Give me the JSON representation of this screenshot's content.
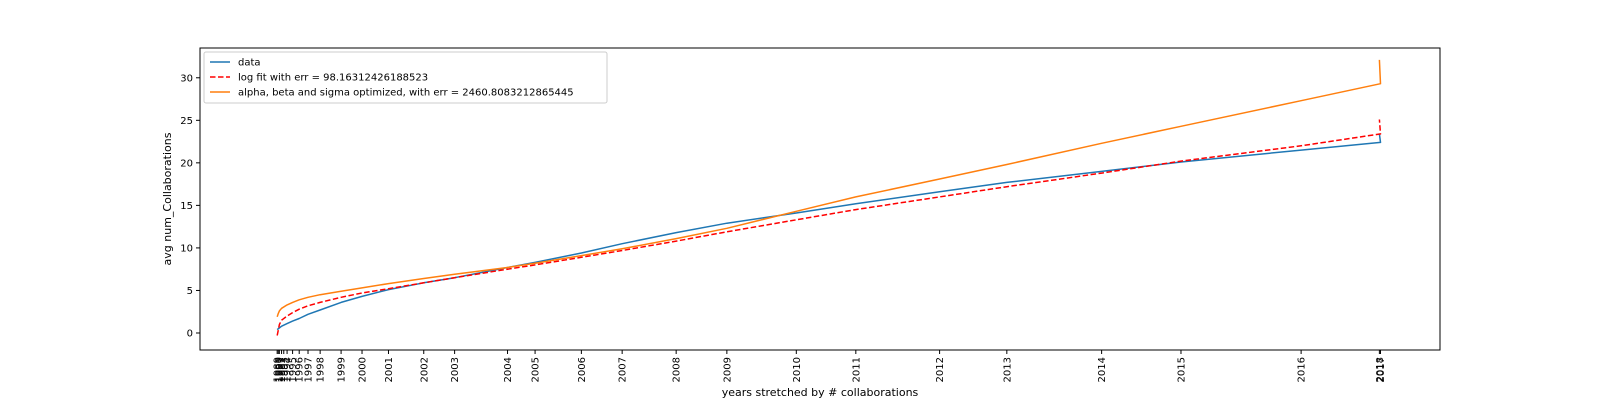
{
  "chart_data": {
    "type": "line",
    "xlabel": "years stretched by # collaborations",
    "ylabel": "avg num_Collaborations",
    "ylim": [
      -2,
      33.5
    ],
    "yticks": [
      0,
      5,
      10,
      15,
      20,
      25,
      30
    ],
    "xlim": [
      -0.07,
      1.055
    ],
    "grid": false,
    "legend_position": "top-left",
    "year_ticks": [
      {
        "label": "1989",
        "x": 0.0
      },
      {
        "label": "1990",
        "x": 0.001
      },
      {
        "label": "1991",
        "x": 0.002
      },
      {
        "label": "1992",
        "x": 0.004
      },
      {
        "label": "1993",
        "x": 0.006
      },
      {
        "label": "1994",
        "x": 0.009
      },
      {
        "label": "1995",
        "x": 0.014
      },
      {
        "label": "1996",
        "x": 0.02
      },
      {
        "label": "1997",
        "x": 0.028
      },
      {
        "label": "1998",
        "x": 0.039
      },
      {
        "label": "1999",
        "x": 0.058
      },
      {
        "label": "2000",
        "x": 0.077
      },
      {
        "label": "2001",
        "x": 0.101
      },
      {
        "label": "2002",
        "x": 0.133
      },
      {
        "label": "2003",
        "x": 0.161
      },
      {
        "label": "2004",
        "x": 0.209
      },
      {
        "label": "2005",
        "x": 0.234
      },
      {
        "label": "2006",
        "x": 0.276
      },
      {
        "label": "2007",
        "x": 0.313
      },
      {
        "label": "2008",
        "x": 0.362
      },
      {
        "label": "2009",
        "x": 0.408
      },
      {
        "label": "2010",
        "x": 0.471
      },
      {
        "label": "2011",
        "x": 0.525
      },
      {
        "label": "2012",
        "x": 0.601
      },
      {
        "label": "2013",
        "x": 0.662
      },
      {
        "label": "2014",
        "x": 0.748
      },
      {
        "label": "2015",
        "x": 0.82
      },
      {
        "label": "2016",
        "x": 0.929
      },
      {
        "label": "2017",
        "x": 1.001
      },
      {
        "label": "2018",
        "x": 1.0
      }
    ],
    "series": [
      {
        "name": "data",
        "color": "#1f77b4",
        "dash": "solid",
        "x": [
          0.0,
          0.004,
          0.009,
          0.014,
          0.02,
          0.028,
          0.039,
          0.058,
          0.077,
          0.101,
          0.133,
          0.161,
          0.209,
          0.234,
          0.276,
          0.313,
          0.362,
          0.408,
          0.471,
          0.525,
          0.601,
          0.662,
          0.748,
          0.82,
          0.929,
          1.001,
          1.0
        ],
        "y": [
          0.4,
          0.8,
          1.1,
          1.4,
          1.7,
          2.2,
          2.7,
          3.6,
          4.3,
          5.1,
          5.9,
          6.5,
          7.7,
          8.3,
          9.4,
          10.5,
          11.8,
          12.9,
          14.1,
          15.2,
          16.6,
          17.7,
          19.0,
          20.1,
          21.5,
          22.4,
          23.4
        ]
      },
      {
        "name": "log fit with err = 98.16312426188523",
        "color": "#ff0000",
        "dash": "dashed",
        "x": [
          0.0,
          0.002,
          0.004,
          0.009,
          0.014,
          0.02,
          0.028,
          0.039,
          0.058,
          0.077,
          0.101,
          0.133,
          0.161,
          0.209,
          0.234,
          0.276,
          0.313,
          0.362,
          0.408,
          0.471,
          0.525,
          0.601,
          0.662,
          0.748,
          0.82,
          0.929,
          1.001,
          1.0
        ],
        "y": [
          -0.3,
          1.0,
          1.5,
          2.0,
          2.4,
          2.8,
          3.2,
          3.6,
          4.2,
          4.7,
          5.2,
          5.9,
          6.5,
          7.5,
          8.0,
          8.9,
          9.7,
          10.8,
          11.9,
          13.3,
          14.5,
          16.0,
          17.2,
          18.8,
          20.2,
          22.0,
          23.4,
          25.1
        ]
      },
      {
        "name": "alpha, beta and sigma optimized, with err = 2460.8083212865445",
        "color": "#ff7f0e",
        "dash": "solid",
        "x": [
          0.0,
          0.001,
          0.002,
          0.004,
          0.009,
          0.014,
          0.02,
          0.028,
          0.039,
          0.058,
          0.077,
          0.101,
          0.133,
          0.161,
          0.209,
          0.234,
          0.276,
          0.313,
          0.362,
          0.408,
          0.471,
          0.525,
          0.601,
          0.662,
          0.748,
          0.82,
          0.929,
          1.001,
          1.0
        ],
        "y": [
          1.9,
          2.3,
          2.6,
          2.9,
          3.3,
          3.6,
          3.9,
          4.2,
          4.5,
          4.9,
          5.3,
          5.8,
          6.4,
          6.9,
          7.7,
          8.2,
          9.1,
          9.9,
          11.1,
          12.3,
          14.3,
          16.0,
          18.1,
          19.8,
          22.3,
          24.3,
          27.3,
          29.3,
          32.1
        ]
      }
    ]
  }
}
